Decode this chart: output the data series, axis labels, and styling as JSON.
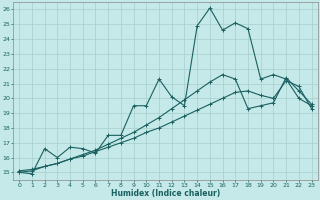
{
  "title": "",
  "xlabel": "Humidex (Indice chaleur)",
  "xlim": [
    -0.5,
    23.5
  ],
  "ylim": [
    14.5,
    26.5
  ],
  "background_color": "#c5e8e8",
  "grid_color": "#a8cece",
  "line_color": "#1a6060",
  "spine_color": "#888888",
  "xticks": [
    0,
    1,
    2,
    3,
    4,
    5,
    6,
    7,
    8,
    9,
    10,
    11,
    12,
    13,
    14,
    15,
    16,
    17,
    18,
    19,
    20,
    21,
    22,
    23
  ],
  "yticks": [
    15,
    16,
    17,
    18,
    19,
    20,
    21,
    22,
    23,
    24,
    25,
    26
  ],
  "line1_x": [
    0,
    1,
    2,
    3,
    4,
    5,
    6,
    7,
    8,
    9,
    10,
    11,
    12,
    13,
    14,
    15,
    16,
    17,
    18,
    19,
    20,
    21,
    22,
    23
  ],
  "line1_y": [
    15.0,
    14.9,
    16.6,
    16.0,
    16.7,
    16.6,
    16.3,
    17.5,
    17.5,
    19.5,
    19.5,
    21.3,
    20.1,
    19.5,
    24.9,
    26.1,
    24.6,
    25.1,
    24.7,
    21.3,
    21.6,
    21.3,
    20.0,
    19.5
  ],
  "line2_x": [
    0,
    1,
    2,
    3,
    4,
    5,
    6,
    7,
    8,
    9,
    10,
    11,
    12,
    13,
    14,
    15,
    16,
    17,
    18,
    19,
    20,
    21,
    22,
    23
  ],
  "line2_y": [
    15.0,
    15.1,
    15.4,
    15.6,
    15.9,
    16.1,
    16.4,
    16.7,
    17.0,
    17.3,
    17.7,
    18.0,
    18.4,
    18.8,
    19.2,
    19.6,
    20.0,
    20.4,
    20.5,
    20.2,
    20.0,
    21.2,
    20.8,
    19.3
  ],
  "line3_x": [
    0,
    1,
    2,
    3,
    4,
    5,
    6,
    7,
    8,
    9,
    10,
    11,
    12,
    13,
    14,
    15,
    16,
    17,
    18,
    19,
    20,
    21,
    22,
    23
  ],
  "line3_y": [
    15.1,
    15.2,
    15.4,
    15.6,
    15.9,
    16.2,
    16.5,
    16.9,
    17.3,
    17.7,
    18.2,
    18.7,
    19.3,
    19.9,
    20.5,
    21.1,
    21.6,
    21.3,
    19.3,
    19.5,
    19.7,
    21.4,
    20.5,
    19.6
  ]
}
